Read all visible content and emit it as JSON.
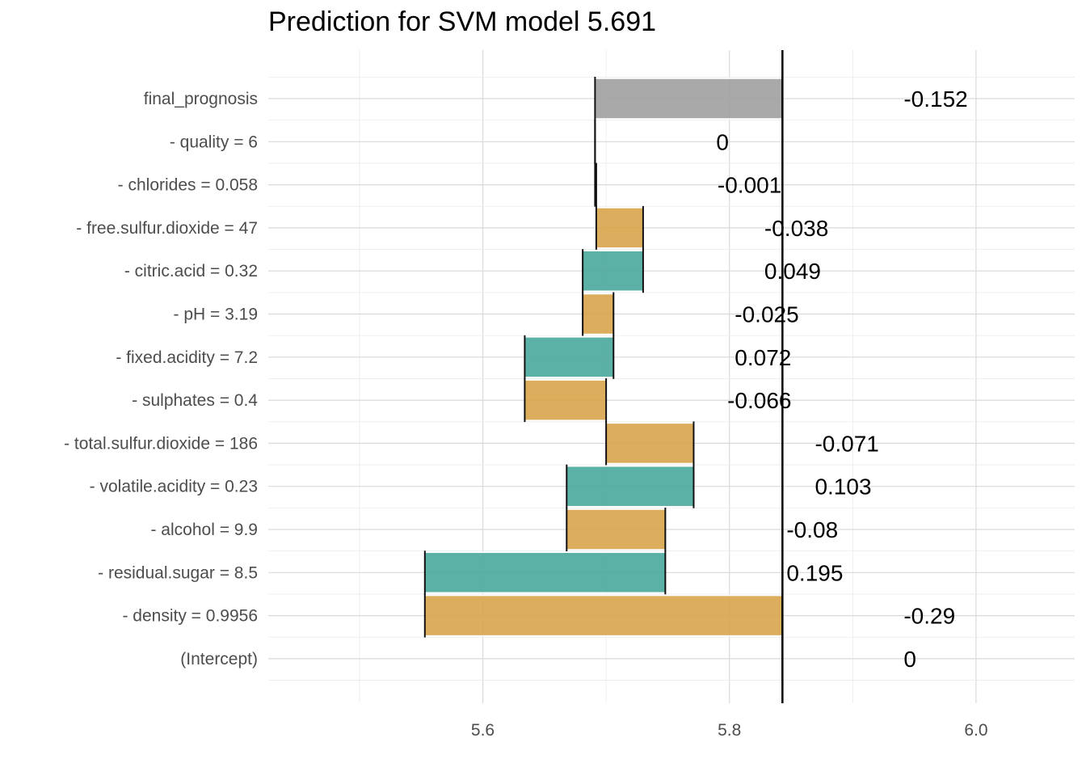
{
  "chart_data": {
    "type": "bar",
    "subtype": "break-down waterfall",
    "title": "Prediction for SVM model 5.691",
    "xlabel": "",
    "ylabel": "",
    "xlim": [
      5.426,
      6.08
    ],
    "xticks": [
      5.6,
      5.8,
      6.0
    ],
    "x_tick_labels": [
      "5.6",
      "5.8",
      "6.0"
    ],
    "grid": true,
    "prediction_line": 5.843,
    "colors": {
      "positive": "#4aa89c",
      "negative": "#d8a44a",
      "prediction": "#a0a0a0"
    },
    "rows": [
      {
        "label": "final_prognosis",
        "value_label": "-0.152",
        "start": 5.843,
        "end": 5.691,
        "kind": "prediction"
      },
      {
        "label": "- quality = 6",
        "value_label": "0",
        "start": 5.691,
        "end": 5.691,
        "kind": "zero"
      },
      {
        "label": "- chlorides = 0.058",
        "value_label": "-0.001",
        "start": 5.692,
        "end": 5.691,
        "kind": "negative"
      },
      {
        "label": "- free.sulfur.dioxide = 47",
        "value_label": "-0.038",
        "start": 5.73,
        "end": 5.692,
        "kind": "negative"
      },
      {
        "label": "- citric.acid = 0.32",
        "value_label": "0.049",
        "start": 5.681,
        "end": 5.73,
        "kind": "positive"
      },
      {
        "label": "- pH = 3.19",
        "value_label": "-0.025",
        "start": 5.706,
        "end": 5.681,
        "kind": "negative"
      },
      {
        "label": "- fixed.acidity = 7.2",
        "value_label": "0.072",
        "start": 5.634,
        "end": 5.706,
        "kind": "positive"
      },
      {
        "label": "- sulphates = 0.4",
        "value_label": "-0.066",
        "start": 5.7,
        "end": 5.634,
        "kind": "negative"
      },
      {
        "label": "- total.sulfur.dioxide = 186",
        "value_label": "-0.071",
        "start": 5.771,
        "end": 5.7,
        "kind": "negative"
      },
      {
        "label": "- volatile.acidity = 0.23",
        "value_label": "0.103",
        "start": 5.668,
        "end": 5.771,
        "kind": "positive"
      },
      {
        "label": "- alcohol = 9.9",
        "value_label": "-0.08",
        "start": 5.748,
        "end": 5.668,
        "kind": "negative"
      },
      {
        "label": "- residual.sugar = 8.5",
        "value_label": "0.195",
        "start": 5.553,
        "end": 5.748,
        "kind": "positive"
      },
      {
        "label": "- density = 0.9956",
        "value_label": "-0.29",
        "start": 5.843,
        "end": 5.553,
        "kind": "negative"
      },
      {
        "label": "(Intercept)",
        "value_label": "0",
        "start": 5.843,
        "end": 5.843,
        "kind": "zero"
      }
    ]
  }
}
